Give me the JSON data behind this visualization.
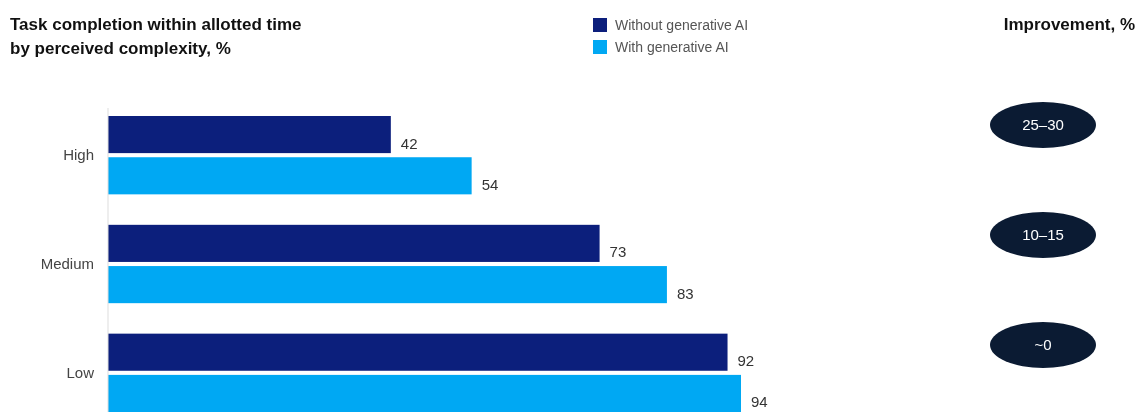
{
  "chart_data": {
    "type": "bar",
    "orientation": "horizontal",
    "title": "Task completion within allotted time by perceived complexity, %",
    "categories": [
      "High",
      "Medium",
      "Low"
    ],
    "series": [
      {
        "name": "Without generative AI",
        "color": "#0c1f7c",
        "values": [
          42,
          73,
          92
        ]
      },
      {
        "name": "With generative AI",
        "color": "#00a8f3",
        "values": [
          54,
          83,
          94
        ]
      }
    ],
    "tick_labels": "y",
    "data_labels": true,
    "legend": "top",
    "annotations": [
      "Improvement, %",
      "25–30",
      "10–15",
      "~0"
    ]
  }
}
